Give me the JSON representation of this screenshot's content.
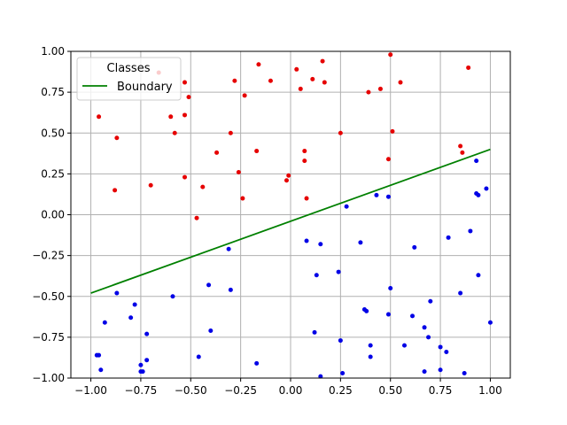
{
  "chart_data": {
    "type": "scatter",
    "title": "",
    "xlabel": "",
    "ylabel": "",
    "xlim": [
      -1.1,
      1.1
    ],
    "ylim": [
      -1.0,
      1.0
    ],
    "grid": true,
    "xticks": [
      "−1.00",
      "−0.75",
      "−0.50",
      "−0.25",
      "0.00",
      "0.25",
      "0.50",
      "0.75",
      "1.00"
    ],
    "yticks": [
      "−1.00",
      "−0.75",
      "−0.50",
      "−0.25",
      "0.00",
      "0.25",
      "0.50",
      "0.75",
      "1.00"
    ],
    "xtick_values": [
      -1.0,
      -0.75,
      -0.5,
      -0.25,
      0.0,
      0.25,
      0.5,
      0.75,
      1.0
    ],
    "ytick_values": [
      -1.0,
      -0.75,
      -0.5,
      -0.25,
      0.0,
      0.25,
      0.5,
      0.75,
      1.0
    ],
    "legend": {
      "title": "Classes",
      "placement": "top-left",
      "entries": [
        "Boundary"
      ]
    },
    "colors": {
      "class_red": "#e60000",
      "class_blue": "#0000e6",
      "boundary": "#008000",
      "grid": "#b0b0b0"
    },
    "boundary": {
      "name": "Boundary",
      "x": [
        -1.0,
        1.0
      ],
      "y": [
        -0.48,
        0.4
      ]
    },
    "series": [
      {
        "color": "red",
        "points": [
          [
            0.5,
            0.98
          ],
          [
            0.16,
            0.94
          ],
          [
            -0.16,
            0.92
          ],
          [
            0.89,
            0.9
          ],
          [
            0.03,
            0.89
          ],
          [
            -0.66,
            0.87
          ],
          [
            0.11,
            0.83
          ],
          [
            -0.28,
            0.82
          ],
          [
            -0.1,
            0.82
          ],
          [
            0.17,
            0.81
          ],
          [
            0.55,
            0.81
          ],
          [
            -0.53,
            0.81
          ],
          [
            0.05,
            0.77
          ],
          [
            0.45,
            0.77
          ],
          [
            0.39,
            0.75
          ],
          [
            -0.23,
            0.73
          ],
          [
            -0.51,
            0.72
          ],
          [
            -0.96,
            0.6
          ],
          [
            -0.6,
            0.6
          ],
          [
            -0.53,
            0.61
          ],
          [
            -0.58,
            0.5
          ],
          [
            -0.3,
            0.5
          ],
          [
            0.25,
            0.5
          ],
          [
            0.51,
            0.51
          ],
          [
            -0.87,
            0.47
          ],
          [
            0.85,
            0.42
          ],
          [
            -0.17,
            0.39
          ],
          [
            0.07,
            0.39
          ],
          [
            0.86,
            0.38
          ],
          [
            -0.37,
            0.38
          ],
          [
            0.49,
            0.34
          ],
          [
            0.07,
            0.33
          ],
          [
            -0.26,
            0.26
          ],
          [
            -0.01,
            0.24
          ],
          [
            -0.53,
            0.23
          ],
          [
            -0.02,
            0.21
          ],
          [
            -0.7,
            0.18
          ],
          [
            -0.44,
            0.17
          ],
          [
            -0.88,
            0.15
          ],
          [
            -0.24,
            0.1
          ],
          [
            0.08,
            0.1
          ],
          [
            -0.47,
            -0.02
          ]
        ]
      },
      {
        "color": "blue",
        "points": [
          [
            0.93,
            0.33
          ],
          [
            0.98,
            0.16
          ],
          [
            0.93,
            0.13
          ],
          [
            0.94,
            0.12
          ],
          [
            0.43,
            0.12
          ],
          [
            0.49,
            0.11
          ],
          [
            0.28,
            0.05
          ],
          [
            0.9,
            -0.1
          ],
          [
            0.79,
            -0.14
          ],
          [
            0.08,
            -0.16
          ],
          [
            0.15,
            -0.18
          ],
          [
            0.35,
            -0.17
          ],
          [
            0.62,
            -0.2
          ],
          [
            -0.31,
            -0.21
          ],
          [
            0.24,
            -0.35
          ],
          [
            0.13,
            -0.37
          ],
          [
            0.94,
            -0.37
          ],
          [
            -0.41,
            -0.43
          ],
          [
            0.5,
            -0.45
          ],
          [
            -0.3,
            -0.46
          ],
          [
            0.85,
            -0.48
          ],
          [
            -0.87,
            -0.48
          ],
          [
            -0.59,
            -0.5
          ],
          [
            0.7,
            -0.53
          ],
          [
            -0.78,
            -0.55
          ],
          [
            0.37,
            -0.58
          ],
          [
            0.38,
            -0.59
          ],
          [
            0.49,
            -0.61
          ],
          [
            0.61,
            -0.62
          ],
          [
            -0.8,
            -0.63
          ],
          [
            -0.93,
            -0.66
          ],
          [
            1.0,
            -0.66
          ],
          [
            0.67,
            -0.69
          ],
          [
            -0.4,
            -0.71
          ],
          [
            0.12,
            -0.72
          ],
          [
            -0.72,
            -0.73
          ],
          [
            0.69,
            -0.75
          ],
          [
            0.25,
            -0.77
          ],
          [
            0.57,
            -0.8
          ],
          [
            0.4,
            -0.8
          ],
          [
            0.75,
            -0.81
          ],
          [
            0.78,
            -0.84
          ],
          [
            -0.97,
            -0.86
          ],
          [
            -0.96,
            -0.86
          ],
          [
            -0.46,
            -0.87
          ],
          [
            0.4,
            -0.87
          ],
          [
            -0.72,
            -0.89
          ],
          [
            -0.17,
            -0.91
          ],
          [
            -0.75,
            -0.92
          ],
          [
            -0.95,
            -0.95
          ],
          [
            0.75,
            -0.95
          ],
          [
            -0.75,
            -0.96
          ],
          [
            -0.74,
            -0.96
          ],
          [
            0.67,
            -0.96
          ],
          [
            0.26,
            -0.97
          ],
          [
            0.87,
            -0.97
          ],
          [
            0.15,
            -0.99
          ]
        ]
      }
    ]
  }
}
